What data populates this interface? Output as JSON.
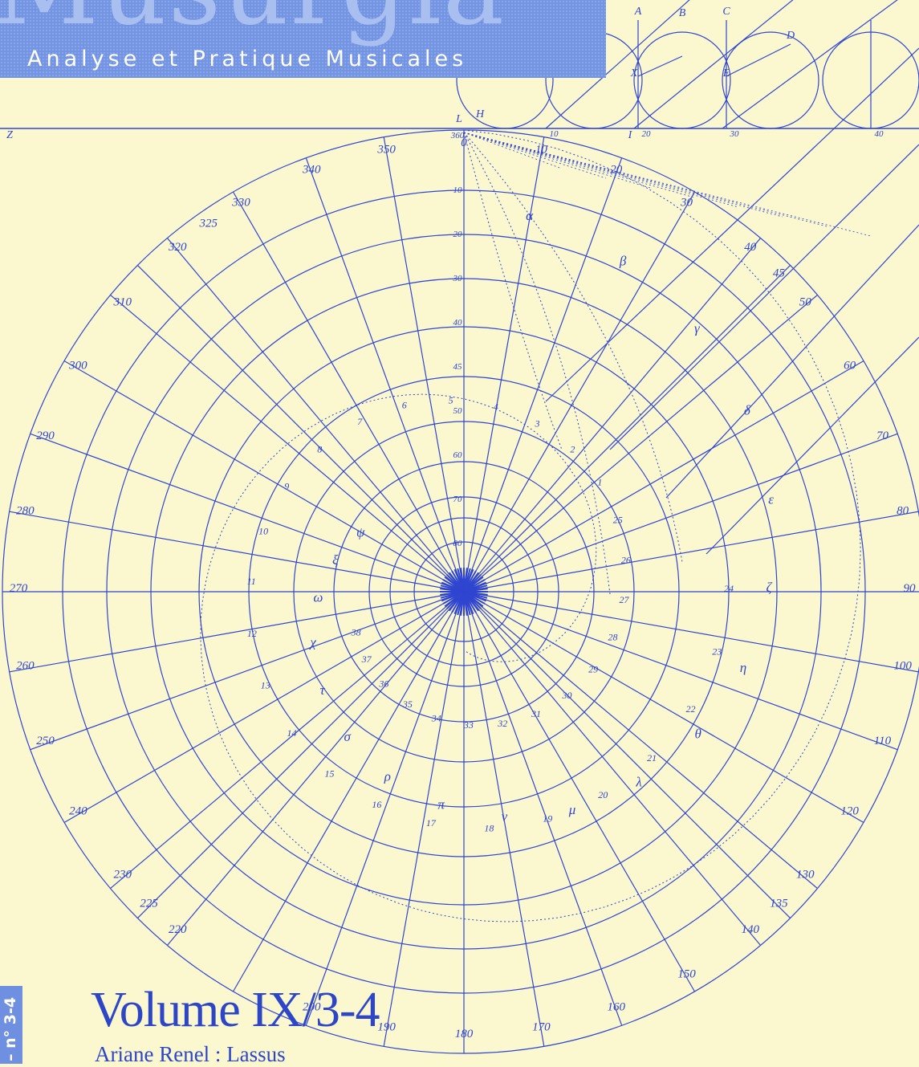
{
  "masthead": {
    "title": "Musurgia",
    "subtitle": "Analyse et Pratique Musicales"
  },
  "volume": "Volume IX/3-4",
  "article_line": "Ariane Renel : Lassus",
  "spine_label": "– n° 3-4",
  "colors": {
    "paper": "#fbf8cf",
    "ink": "#2f45d0",
    "masthead": "#7393e3"
  },
  "diagram": {
    "degree_labels": [
      "350",
      "340",
      "330",
      "320",
      "325",
      "310",
      "300",
      "290",
      "280",
      "270",
      "260",
      "250",
      "240",
      "230",
      "225",
      "220",
      "200",
      "190",
      "180",
      "170",
      "160",
      "150",
      "140",
      "135",
      "130",
      "120",
      "110",
      "100",
      "90",
      "80",
      "70",
      "60",
      "50",
      "45",
      "40",
      "30",
      "20",
      "10",
      "0"
    ],
    "radial_labels": [
      "10",
      "20",
      "30",
      "40",
      "45",
      "50",
      "60",
      "70",
      "80"
    ],
    "spiral_labels": [
      "24",
      "23",
      "22",
      "21",
      "20",
      "19",
      "18",
      "17",
      "16",
      "15",
      "14",
      "13",
      "12",
      "11",
      "10",
      "9",
      "8",
      "7",
      "6",
      "5",
      "4",
      "3",
      "2",
      "1",
      "25",
      "26",
      "27",
      "28",
      "29",
      "30",
      "31",
      "32",
      "33",
      "34",
      "35",
      "36",
      "37",
      "38"
    ],
    "greek_labels": [
      "α",
      "β",
      "γ",
      "δ",
      "ε",
      "ζ",
      "η",
      "θ",
      "λ",
      "μ",
      "ν",
      "π",
      "ρ",
      "σ",
      "τ",
      "χ",
      "ω",
      "ξ",
      "ψ"
    ],
    "top_letters": [
      "A",
      "B",
      "C",
      "D",
      "X",
      "E",
      "L",
      "H",
      "Z",
      "I"
    ],
    "top_degrees": [
      "360",
      "10",
      "20",
      "30",
      "40"
    ]
  }
}
